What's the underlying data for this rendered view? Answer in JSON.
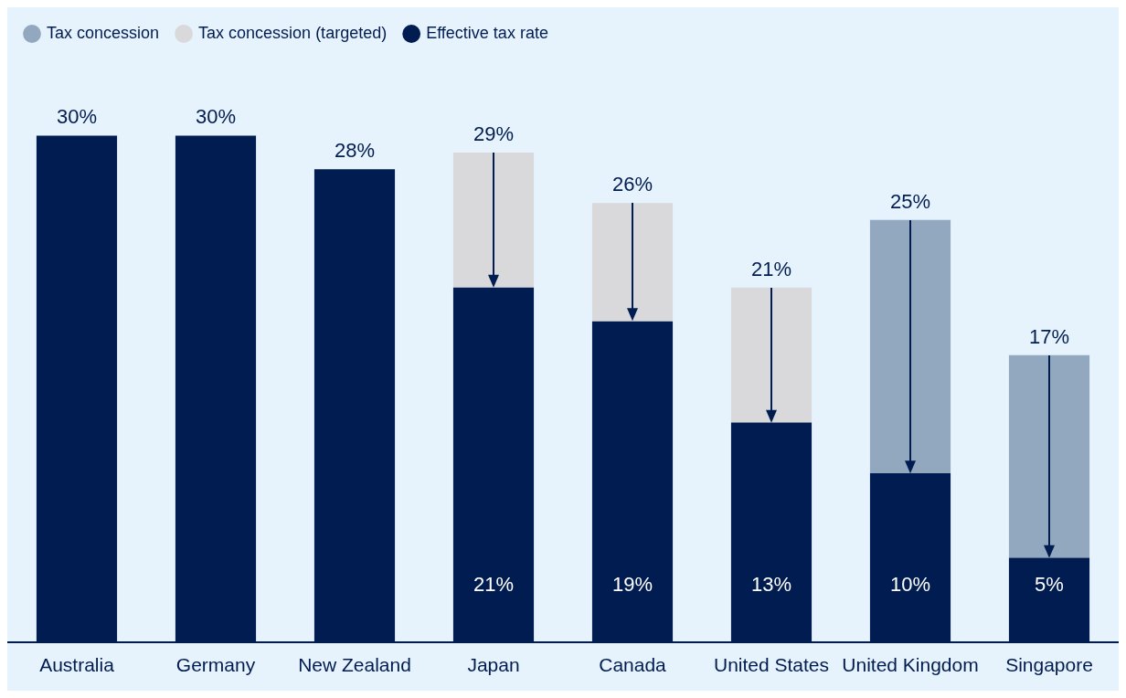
{
  "chart_data": {
    "type": "bar",
    "stacked": true,
    "legend": "top left",
    "grid": false,
    "categories": [
      "Australia",
      "Germany",
      "New Zealand",
      "Japan",
      "Canada",
      "United States",
      "United Kingdom",
      "Singapore"
    ],
    "series": [
      {
        "name": "Effective tax rate",
        "color": "#001c50",
        "values": [
          30,
          30,
          28,
          21,
          19,
          13,
          10,
          5
        ],
        "value_labels": [
          null,
          null,
          null,
          "21%",
          "19%",
          "13%",
          "10%",
          "5%"
        ]
      },
      {
        "name": "Tax concession (targeted)",
        "color": "#d9d9dc",
        "values": [
          0,
          0,
          0,
          8,
          7,
          8,
          0,
          0
        ]
      },
      {
        "name": "Tax concession",
        "color": "#91a8be",
        "values": [
          0,
          0,
          0,
          0,
          0,
          0,
          15,
          12
        ]
      }
    ],
    "totals": [
      "30%",
      "30%",
      "28%",
      "29%",
      "26%",
      "21%",
      "25%",
      "17%"
    ]
  }
}
